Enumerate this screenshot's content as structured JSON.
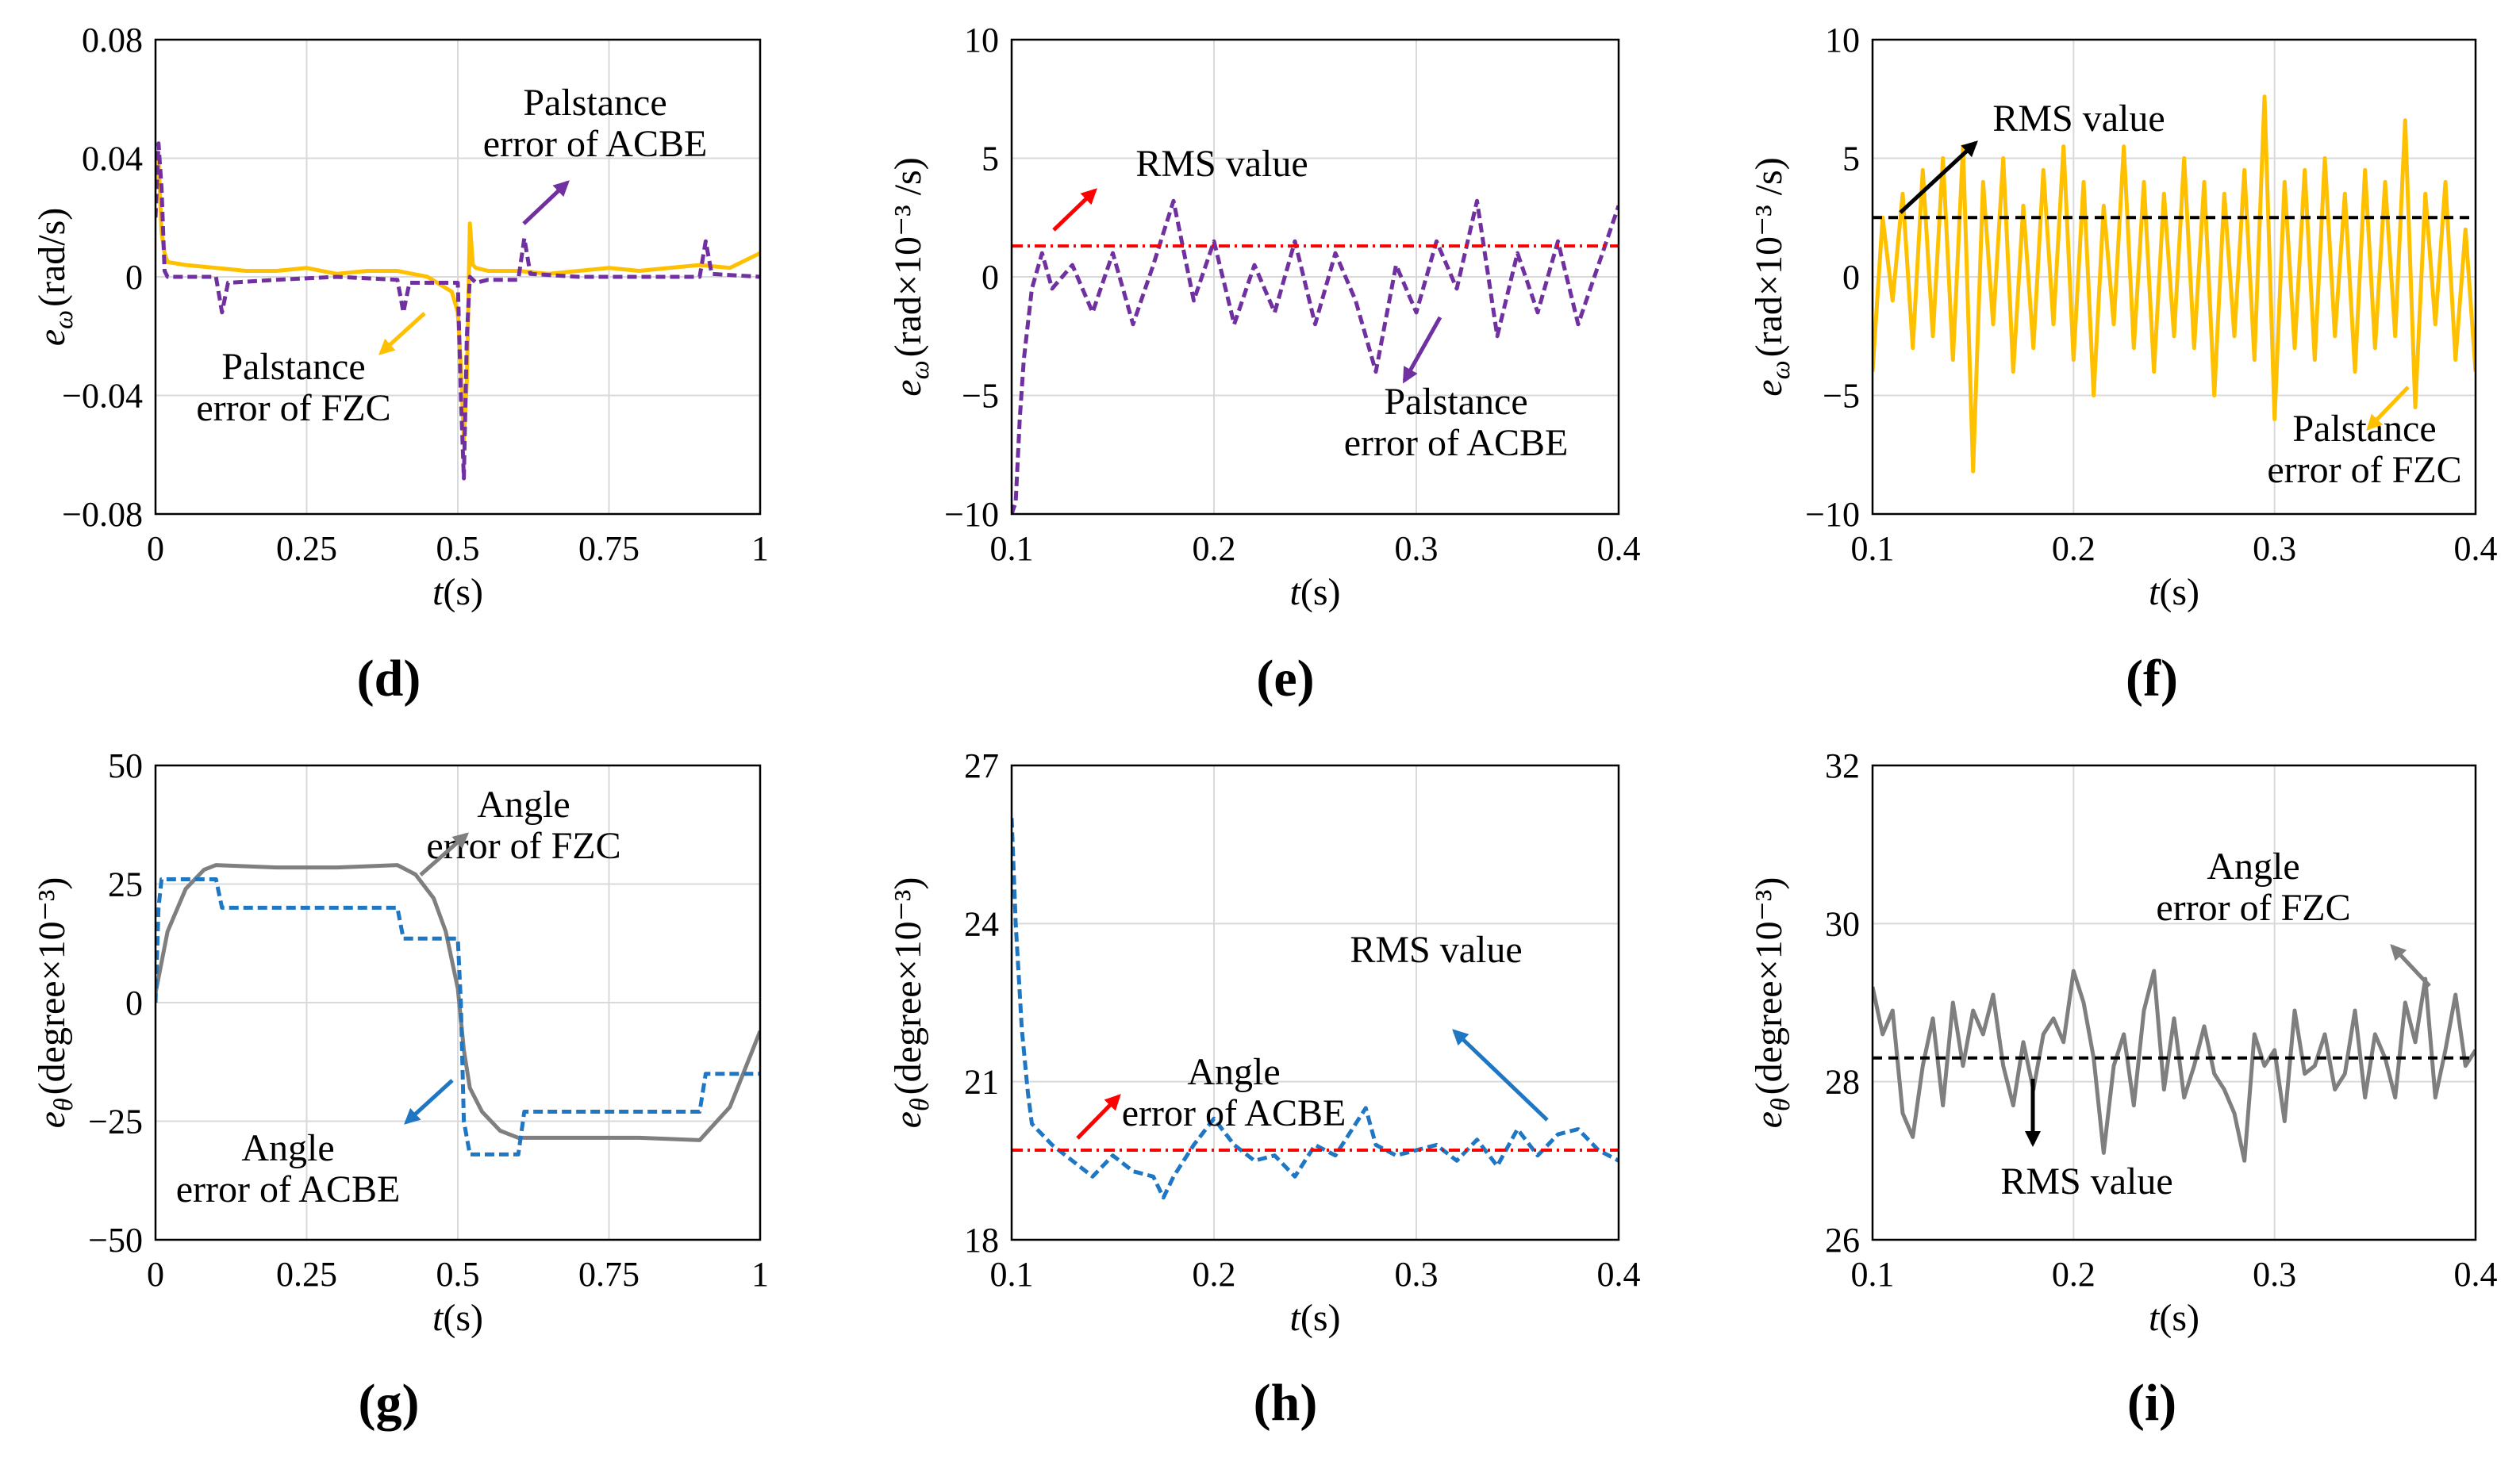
{
  "colors": {
    "acbe": "#7030A0",
    "fzc": "#FFC000",
    "acbe_angle": "#1F77C4",
    "fzc_angle": "#7F7F7F",
    "rms_red": "#FF0000",
    "rms_black": "#000000",
    "grid": "#D9D9D9"
  },
  "chart_data": [
    {
      "id": "d",
      "panel_label": "(d)",
      "type": "line",
      "xlabel_var": "t",
      "xlabel_unit": "(s)",
      "ylabel_var": "e",
      "ylabel_sub": "ω",
      "ylabel_unit": "(rad/s)",
      "xlim": [
        0,
        1
      ],
      "ylim": [
        -0.08,
        0.08
      ],
      "xticks": [
        0,
        0.25,
        0.5,
        0.75,
        1
      ],
      "xtick_labels": [
        "0",
        "0.25",
        "0.5",
        "0.75",
        "1"
      ],
      "yticks": [
        -0.08,
        -0.04,
        0,
        0.04,
        0.08
      ],
      "ytick_labels": [
        "−0.08",
        "−0.04",
        "0",
        "0.04",
        "0.08"
      ],
      "series": [
        {
          "name": "Palstance error of FZC",
          "color": "#FFC000",
          "dash": "",
          "x": [
            0,
            0.005,
            0.01,
            0.015,
            0.02,
            0.05,
            0.1,
            0.15,
            0.2,
            0.25,
            0.3,
            0.35,
            0.4,
            0.45,
            0.49,
            0.5,
            0.505,
            0.51,
            0.515,
            0.52,
            0.525,
            0.53,
            0.55,
            0.6,
            0.65,
            0.7,
            0.75,
            0.8,
            0.85,
            0.9,
            0.95,
            1
          ],
          "y": [
            0.03,
            0.04,
            0.015,
            0.008,
            0.005,
            0.004,
            0.003,
            0.002,
            0.002,
            0.003,
            0.001,
            0.002,
            0.002,
            0.0,
            -0.005,
            -0.012,
            -0.03,
            -0.055,
            -0.035,
            0.018,
            0.004,
            0.003,
            0.002,
            0.002,
            0.001,
            0.002,
            0.003,
            0.002,
            0.003,
            0.004,
            0.003,
            0.008
          ]
        },
        {
          "name": "Palstance error of ACBE",
          "color": "#7030A0",
          "dash": "12,6",
          "x": [
            0,
            0.005,
            0.01,
            0.015,
            0.02,
            0.05,
            0.1,
            0.11,
            0.12,
            0.2,
            0.3,
            0.4,
            0.41,
            0.42,
            0.5,
            0.505,
            0.51,
            0.515,
            0.52,
            0.53,
            0.55,
            0.6,
            0.61,
            0.62,
            0.7,
            0.8,
            0.9,
            0.91,
            0.92,
            1
          ],
          "y": [
            0.02,
            0.045,
            0.03,
            0.002,
            0.0,
            0.0,
            0.0,
            -0.012,
            -0.002,
            -0.001,
            0.0,
            -0.001,
            -0.012,
            -0.002,
            -0.002,
            -0.04,
            -0.068,
            -0.02,
            0.0,
            -0.002,
            -0.001,
            -0.001,
            0.013,
            0.001,
            0.0,
            0.0,
            0.0,
            0.012,
            0.001,
            0.0
          ]
        }
      ],
      "annotations": [
        {
          "lines": [
            "Palstance",
            "error of ACBE"
          ]
        },
        {
          "lines": [
            "Palstance",
            "error of FZC"
          ]
        }
      ]
    },
    {
      "id": "e",
      "panel_label": "(e)",
      "type": "line",
      "xlabel_var": "t",
      "xlabel_unit": "(s)",
      "ylabel_var": "e",
      "ylabel_sub": "ω",
      "ylabel_unit": "(rad×10⁻³ /s)",
      "xlim": [
        0.1,
        0.4
      ],
      "ylim": [
        -10,
        10
      ],
      "xticks": [
        0.1,
        0.2,
        0.3,
        0.4
      ],
      "xtick_labels": [
        "0.1",
        "0.2",
        "0.3",
        "0.4"
      ],
      "yticks": [
        -10,
        -5,
        0,
        5,
        10
      ],
      "ytick_labels": [
        "−10",
        "−5",
        "0",
        "5",
        "10"
      ],
      "series": [
        {
          "name": "Palstance error of ACBE",
          "color": "#7030A0",
          "dash": "12,6",
          "x": [
            0.1,
            0.102,
            0.104,
            0.106,
            0.108,
            0.11,
            0.115,
            0.12,
            0.13,
            0.14,
            0.15,
            0.16,
            0.17,
            0.18,
            0.19,
            0.2,
            0.21,
            0.22,
            0.23,
            0.24,
            0.25,
            0.26,
            0.27,
            0.28,
            0.29,
            0.3,
            0.31,
            0.32,
            0.33,
            0.34,
            0.35,
            0.36,
            0.37,
            0.38,
            0.39,
            0.4
          ],
          "y": [
            -10,
            -9.5,
            -6,
            -3.5,
            -2,
            -0.5,
            1,
            -0.5,
            0.5,
            -1.5,
            1,
            -2,
            0.5,
            3.2,
            -1,
            1.5,
            -2,
            0.5,
            -1.5,
            1.5,
            -2,
            1,
            -1,
            -4,
            0.5,
            -1.5,
            1.5,
            -0.5,
            3.2,
            -2.5,
            1,
            -1.5,
            1.5,
            -2,
            0.5,
            3
          ]
        },
        {
          "name": "RMS value",
          "color": "#FF0000",
          "dash": "14,6,3,6",
          "x": [
            0.1,
            0.4
          ],
          "y": [
            1.3,
            1.3
          ]
        }
      ],
      "annotations": [
        {
          "lines": [
            "RMS value"
          ]
        },
        {
          "lines": [
            "Palstance",
            "error of ACBE"
          ]
        }
      ]
    },
    {
      "id": "f",
      "panel_label": "(f)",
      "type": "line",
      "xlabel_var": "t",
      "xlabel_unit": "(s)",
      "ylabel_var": "e",
      "ylabel_sub": "ω",
      "ylabel_unit": "(rad×10⁻³ /s)",
      "xlim": [
        0.1,
        0.4
      ],
      "ylim": [
        -10,
        10
      ],
      "xticks": [
        0.1,
        0.2,
        0.3,
        0.4
      ],
      "xtick_labels": [
        "0.1",
        "0.2",
        "0.3",
        "0.4"
      ],
      "yticks": [
        -10,
        -5,
        0,
        5,
        10
      ],
      "ytick_labels": [
        "−10",
        "−5",
        "0",
        "5",
        "10"
      ],
      "series": [
        {
          "name": "Palstance error of FZC",
          "color": "#FFC000",
          "dash": "",
          "x": [
            0.1,
            0.105,
            0.11,
            0.115,
            0.12,
            0.125,
            0.13,
            0.135,
            0.14,
            0.145,
            0.15,
            0.155,
            0.16,
            0.165,
            0.17,
            0.175,
            0.18,
            0.185,
            0.19,
            0.195,
            0.2,
            0.205,
            0.21,
            0.215,
            0.22,
            0.225,
            0.23,
            0.235,
            0.24,
            0.245,
            0.25,
            0.255,
            0.26,
            0.265,
            0.27,
            0.275,
            0.28,
            0.285,
            0.29,
            0.295,
            0.3,
            0.305,
            0.31,
            0.315,
            0.32,
            0.325,
            0.33,
            0.335,
            0.34,
            0.345,
            0.35,
            0.355,
            0.36,
            0.365,
            0.37,
            0.375,
            0.38,
            0.385,
            0.39,
            0.395,
            0.4
          ],
          "y": [
            -4,
            2.5,
            -1,
            3.5,
            -3,
            4.5,
            -2.5,
            5,
            -3.5,
            5.5,
            -8.2,
            4,
            -2,
            5,
            -4,
            3,
            -3,
            4.5,
            -2,
            5.5,
            -3.5,
            4,
            -5,
            3,
            -2,
            5.5,
            -3,
            4,
            -4,
            3.5,
            -2.5,
            5,
            -3,
            4,
            -5,
            3.5,
            -2.5,
            4.5,
            -3.5,
            7.6,
            -6,
            4,
            -3,
            4.5,
            -3.5,
            5,
            -2.5,
            3.5,
            -4,
            4.5,
            -3,
            4,
            -2.5,
            6.6,
            -5.5,
            3.5,
            -2,
            4,
            -3.5,
            2,
            -4
          ]
        },
        {
          "name": "RMS value",
          "color": "#000000",
          "dash": "12,8",
          "x": [
            0.1,
            0.4
          ],
          "y": [
            2.5,
            2.5
          ]
        }
      ],
      "annotations": [
        {
          "lines": [
            "RMS value"
          ]
        },
        {
          "lines": [
            "Palstance",
            "error of FZC"
          ]
        }
      ]
    },
    {
      "id": "g",
      "panel_label": "(g)",
      "type": "line",
      "xlabel_var": "t",
      "xlabel_unit": "(s)",
      "ylabel_var": "e",
      "ylabel_sub": "θ",
      "ylabel_unit": "(degree×10⁻³)",
      "xlim": [
        0,
        1
      ],
      "ylim": [
        -50,
        50
      ],
      "xticks": [
        0,
        0.25,
        0.5,
        0.75,
        1
      ],
      "xtick_labels": [
        "0",
        "0.25",
        "0.5",
        "0.75",
        "1"
      ],
      "yticks": [
        -50,
        -25,
        0,
        25,
        50
      ],
      "ytick_labels": [
        "−50",
        "−25",
        "0",
        "25",
        "50"
      ],
      "series": [
        {
          "name": "Angle error of FZC",
          "color": "#7F7F7F",
          "dash": "",
          "x": [
            0,
            0.02,
            0.05,
            0.08,
            0.1,
            0.2,
            0.3,
            0.4,
            0.43,
            0.46,
            0.48,
            0.5,
            0.51,
            0.52,
            0.54,
            0.57,
            0.6,
            0.7,
            0.8,
            0.9,
            0.95,
            1
          ],
          "y": [
            2,
            15,
            24,
            28,
            29,
            28.5,
            28.5,
            29,
            27,
            22,
            15,
            3,
            -10,
            -18,
            -23,
            -27,
            -28.5,
            -28.5,
            -28.5,
            -29,
            -22,
            -6
          ]
        },
        {
          "name": "Angle error of ACBE",
          "color": "#1F77C4",
          "dash": "12,6",
          "x": [
            0,
            0.005,
            0.01,
            0.1,
            0.11,
            0.4,
            0.41,
            0.5,
            0.505,
            0.51,
            0.52,
            0.6,
            0.61,
            0.9,
            0.91,
            1
          ],
          "y": [
            0,
            20,
            26,
            26,
            20,
            20,
            13.5,
            13.5,
            0,
            -25,
            -32,
            -32,
            -23,
            -23,
            -15,
            -15
          ]
        }
      ],
      "annotations": [
        {
          "lines": [
            "Angle",
            "error of FZC"
          ]
        },
        {
          "lines": [
            "Angle",
            "error of ACBE"
          ]
        }
      ]
    },
    {
      "id": "h",
      "panel_label": "(h)",
      "type": "line",
      "xlabel_var": "t",
      "xlabel_unit": "(s)",
      "ylabel_var": "e",
      "ylabel_sub": "θ",
      "ylabel_unit": "(degree×10⁻³)",
      "xlim": [
        0.1,
        0.4
      ],
      "ylim": [
        18,
        27
      ],
      "xticks": [
        0.1,
        0.2,
        0.3,
        0.4
      ],
      "xtick_labels": [
        "0.1",
        "0.2",
        "0.3",
        "0.4"
      ],
      "yticks": [
        18,
        21,
        24,
        27
      ],
      "ytick_labels": [
        "18",
        "21",
        "24",
        "27"
      ],
      "series": [
        {
          "name": "Angle error of ACBE",
          "color": "#1F77C4",
          "dash": "12,6",
          "x": [
            0.1,
            0.102,
            0.105,
            0.108,
            0.11,
            0.115,
            0.12,
            0.13,
            0.14,
            0.15,
            0.16,
            0.17,
            0.175,
            0.18,
            0.19,
            0.2,
            0.21,
            0.22,
            0.23,
            0.24,
            0.25,
            0.26,
            0.27,
            0.275,
            0.28,
            0.29,
            0.3,
            0.31,
            0.32,
            0.33,
            0.34,
            0.35,
            0.36,
            0.37,
            0.38,
            0.39,
            0.4
          ],
          "y": [
            26,
            24,
            22,
            20.8,
            20.2,
            20,
            19.8,
            19.5,
            19.2,
            19.6,
            19.3,
            19.2,
            18.8,
            19.2,
            19.8,
            20.3,
            19.8,
            19.5,
            19.6,
            19.2,
            19.8,
            19.6,
            20.2,
            20.5,
            19.8,
            19.6,
            19.7,
            19.8,
            19.5,
            19.9,
            19.4,
            20.1,
            19.6,
            20,
            20.1,
            19.7,
            19.5
          ]
        },
        {
          "name": "RMS value",
          "color": "#FF0000",
          "dash": "14,6,3,6",
          "x": [
            0.1,
            0.4
          ],
          "y": [
            19.7,
            19.7
          ]
        }
      ],
      "annotations": [
        {
          "lines": [
            "RMS value"
          ]
        },
        {
          "lines": [
            "Angle",
            "error of ACBE"
          ]
        }
      ]
    },
    {
      "id": "i",
      "panel_label": "(i)",
      "type": "line",
      "xlabel_var": "t",
      "xlabel_unit": "(s)",
      "ylabel_var": "e",
      "ylabel_sub": "θ",
      "ylabel_unit": "(degree×10⁻³)",
      "xlim": [
        0.1,
        0.4
      ],
      "ylim": [
        26,
        32
      ],
      "xticks": [
        0.1,
        0.2,
        0.3,
        0.4
      ],
      "xtick_labels": [
        "0.1",
        "0.2",
        "0.3",
        "0.4"
      ],
      "yticks": [
        26,
        28,
        30,
        32
      ],
      "ytick_labels": [
        "26",
        "28",
        "30",
        "32"
      ],
      "series": [
        {
          "name": "Angle error of FZC",
          "color": "#7F7F7F",
          "dash": "",
          "x": [
            0.1,
            0.105,
            0.11,
            0.115,
            0.12,
            0.125,
            0.13,
            0.135,
            0.14,
            0.145,
            0.15,
            0.155,
            0.16,
            0.165,
            0.17,
            0.175,
            0.18,
            0.185,
            0.19,
            0.195,
            0.2,
            0.205,
            0.21,
            0.215,
            0.22,
            0.225,
            0.23,
            0.235,
            0.24,
            0.245,
            0.25,
            0.255,
            0.26,
            0.265,
            0.27,
            0.275,
            0.28,
            0.285,
            0.29,
            0.295,
            0.3,
            0.305,
            0.31,
            0.315,
            0.32,
            0.325,
            0.33,
            0.335,
            0.34,
            0.345,
            0.35,
            0.355,
            0.36,
            0.365,
            0.37,
            0.375,
            0.38,
            0.385,
            0.39,
            0.395,
            0.4
          ],
          "y": [
            29.2,
            28.6,
            28.9,
            27.6,
            27.3,
            28.2,
            28.8,
            27.7,
            29,
            28.2,
            28.9,
            28.6,
            29.1,
            28.2,
            27.7,
            28.5,
            27.9,
            28.6,
            28.8,
            28.5,
            29.4,
            29,
            28.3,
            27.1,
            28.2,
            28.6,
            27.7,
            28.9,
            29.4,
            27.9,
            28.8,
            27.8,
            28.2,
            28.7,
            28.1,
            27.9,
            27.6,
            27,
            28.6,
            28.2,
            28.4,
            27.5,
            28.9,
            28.1,
            28.2,
            28.6,
            27.9,
            28.1,
            28.9,
            27.8,
            28.6,
            28.3,
            27.8,
            29,
            28.5,
            29.3,
            27.8,
            28.4,
            29.1,
            28.2,
            28.4
          ]
        },
        {
          "name": "RMS value",
          "color": "#000000",
          "dash": "12,8",
          "x": [
            0.1,
            0.4
          ],
          "y": [
            28.3,
            28.3
          ]
        }
      ],
      "annotations": [
        {
          "lines": [
            "Angle",
            "error of FZC"
          ]
        },
        {
          "lines": [
            "RMS value"
          ]
        }
      ]
    }
  ]
}
